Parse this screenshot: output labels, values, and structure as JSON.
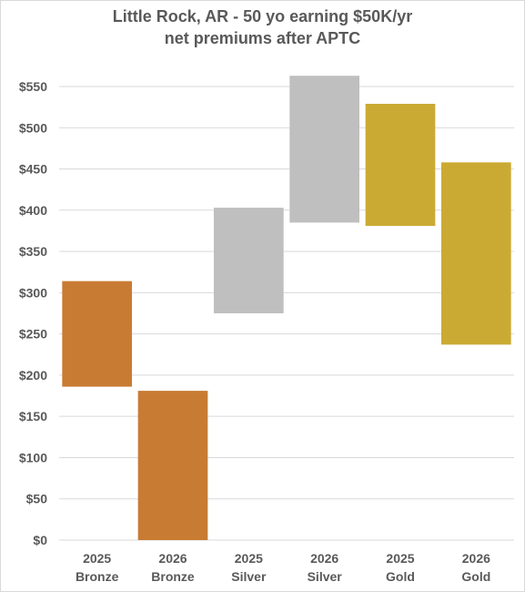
{
  "chart_data": {
    "type": "bar",
    "subtype": "floating-range",
    "title_line1": "Little Rock, AR - 50 yo earning $50K/yr",
    "title_line2": "net premiums after APTC",
    "categories": [
      {
        "year": "2025",
        "tier": "Bronze"
      },
      {
        "year": "2026",
        "tier": "Bronze"
      },
      {
        "year": "2025",
        "tier": "Silver"
      },
      {
        "year": "2026",
        "tier": "Silver"
      },
      {
        "year": "2025",
        "tier": "Gold"
      },
      {
        "year": "2026",
        "tier": "Gold"
      }
    ],
    "ranges": [
      [
        186,
        314
      ],
      [
        0,
        181
      ],
      [
        275,
        403
      ],
      [
        385,
        563
      ],
      [
        381,
        529
      ],
      [
        237,
        458
      ]
    ],
    "colors": [
      "#c87b33",
      "#c87b33",
      "#bfbfbf",
      "#bfbfbf",
      "#cbaa34",
      "#cbaa34"
    ],
    "y_ticks": [
      "$0",
      "$50",
      "$100",
      "$150",
      "$200",
      "$250",
      "$300",
      "$350",
      "$400",
      "$450",
      "$500",
      "$550"
    ],
    "ylim": [
      0,
      575
    ],
    "gridlines": true,
    "legend": "none"
  }
}
